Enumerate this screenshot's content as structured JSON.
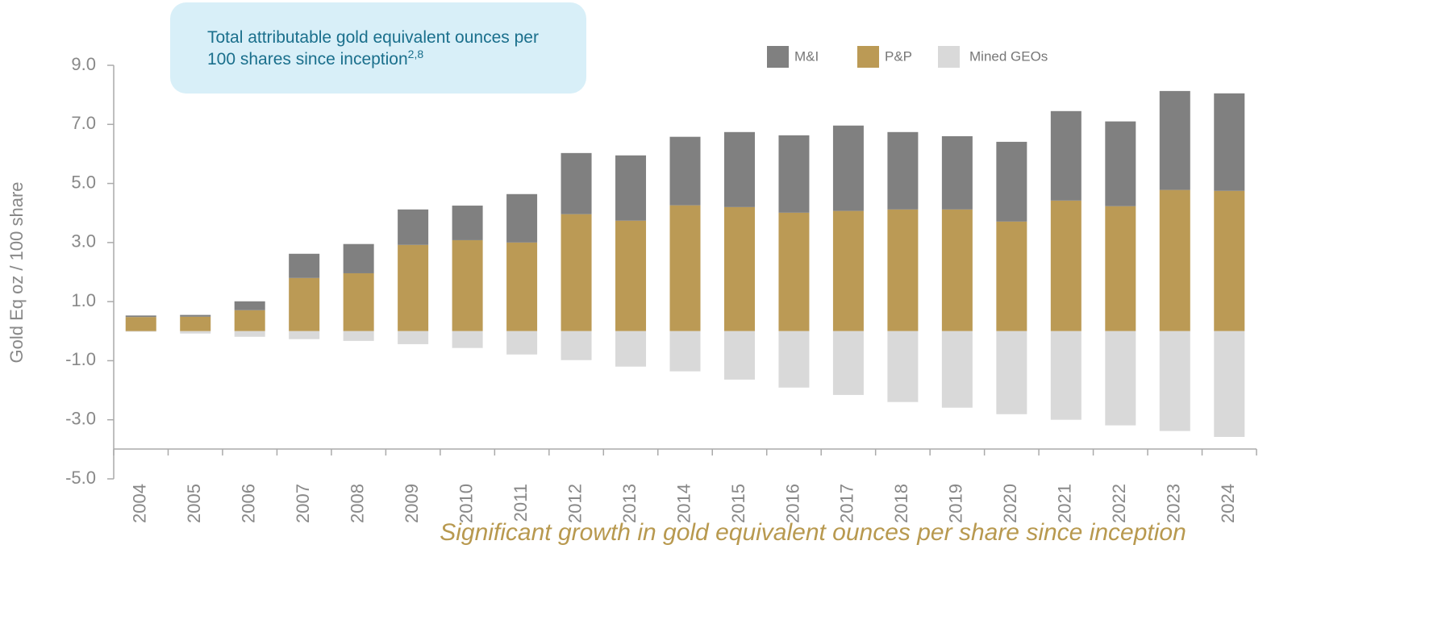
{
  "chart_data": {
    "type": "bar",
    "stacked": true,
    "title": "Total attributable gold equivalent ounces per 100 shares since inception",
    "title_superscript": "2,8",
    "subtitle": "Significant growth in gold equivalent ounces per share since inception",
    "y_label": "Gold Eq oz / 100 share",
    "categories": [
      "2004",
      "2005",
      "2006",
      "2007",
      "2008",
      "2009",
      "2010",
      "2011",
      "2012",
      "2013",
      "2014",
      "2015",
      "2016",
      "2017",
      "2018",
      "2019",
      "2020",
      "2021",
      "2022",
      "2023",
      "2024"
    ],
    "series": [
      {
        "name": "P&P",
        "color": "#bb9a55",
        "values": [
          0.48,
          0.49,
          0.71,
          1.8,
          1.96,
          2.92,
          3.08,
          3.0,
          3.96,
          3.74,
          4.26,
          4.2,
          4.01,
          4.07,
          4.12,
          4.12,
          3.71,
          4.42,
          4.23,
          4.78,
          4.75
        ]
      },
      {
        "name": "M&I",
        "color": "#808080",
        "values": [
          0.05,
          0.06,
          0.3,
          0.82,
          0.99,
          1.2,
          1.17,
          1.64,
          2.07,
          2.21,
          2.32,
          2.54,
          2.62,
          2.89,
          2.62,
          2.48,
          2.7,
          3.03,
          2.87,
          3.35,
          3.3
        ]
      },
      {
        "name": "Mined GEOs",
        "color": "#d9d9d9",
        "values": [
          -0.02,
          -0.08,
          -0.19,
          -0.27,
          -0.33,
          -0.44,
          -0.57,
          -0.79,
          -0.98,
          -1.2,
          -1.36,
          -1.64,
          -1.91,
          -2.16,
          -2.4,
          -2.59,
          -2.81,
          -3.0,
          -3.19,
          -3.38,
          -3.58
        ]
      }
    ],
    "legend_order": [
      1,
      0,
      2
    ],
    "ylim": [
      -5,
      9
    ],
    "yticks": [
      {
        "value": -5,
        "label": "-5.0"
      },
      {
        "value": -3,
        "label": "-3.0"
      },
      {
        "value": -1,
        "label": "-1.0"
      },
      {
        "value": 1,
        "label": "1.0"
      },
      {
        "value": 3,
        "label": "3.0"
      },
      {
        "value": 5,
        "label": "5.0"
      },
      {
        "value": 7,
        "label": "7.0"
      },
      {
        "value": 9,
        "label": "9.0"
      }
    ],
    "grid": false,
    "legend": "top"
  }
}
